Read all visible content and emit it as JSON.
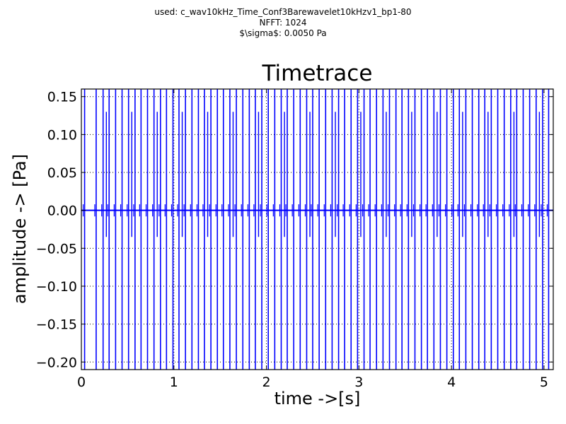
{
  "header": {
    "line1": "used: c_wav10kHz_Time_Conf3Barewavelet10kHzv1_bp1-80",
    "line2": "NFFT: 1024",
    "line3": "$\\sigma$: 0.0050 Pa"
  },
  "chart_data": {
    "type": "line",
    "title": "Timetrace",
    "xlabel": "time ->[s]",
    "ylabel": "amplitude -> [Pa]",
    "xlim": [
      0,
      5.1
    ],
    "ylim": [
      -0.21,
      0.16
    ],
    "xticks": [
      0,
      1,
      2,
      3,
      4,
      5
    ],
    "xtick_labels": [
      "0",
      "1",
      "2",
      "3",
      "4",
      "5"
    ],
    "yticks": [
      0.15,
      0.1,
      0.05,
      0.0,
      -0.05,
      -0.1,
      -0.15,
      -0.2
    ],
    "ytick_labels": [
      "0.15",
      "0.10",
      "0.05",
      "0.00",
      "−0.05",
      "−0.10",
      "−0.15",
      "−0.20"
    ],
    "grid": true,
    "line_color": "#0000ff",
    "series": [
      {
        "pulse_times": [
          0.035,
          0.16,
          0.235,
          0.3,
          0.37,
          0.44,
          0.51,
          0.58,
          0.645,
          0.715,
          0.785,
          0.855,
          0.92,
          0.99,
          1.055,
          1.125,
          1.195,
          1.265,
          1.33,
          1.4,
          1.47,
          1.535,
          1.605,
          1.675,
          1.745,
          1.815,
          1.88,
          1.95,
          2.02,
          2.09,
          2.16,
          2.225,
          2.295,
          2.365,
          2.435,
          2.5,
          2.57,
          2.64,
          2.71,
          2.78,
          2.845,
          2.915,
          2.985,
          3.055,
          3.12,
          3.19,
          3.26,
          3.33,
          3.4,
          3.465,
          3.535,
          3.605,
          3.675,
          3.74,
          3.81,
          3.88,
          3.95,
          4.02,
          4.085,
          4.155,
          4.225,
          4.295,
          4.36,
          4.43,
          4.5,
          4.57,
          4.64,
          4.705,
          4.775,
          4.845,
          4.915,
          4.985,
          5.05
        ],
        "peak_max": 0.16,
        "peak_min": -0.21,
        "secondary_max": 0.13,
        "secondary_min": -0.035,
        "secondary_times": [
          0.235,
          0.51,
          0.785,
          1.055,
          1.33,
          1.605,
          1.88,
          2.16,
          2.435,
          2.71,
          2.985,
          3.26,
          3.535,
          3.81,
          4.085,
          4.36,
          4.64,
          4.915
        ]
      }
    ]
  }
}
